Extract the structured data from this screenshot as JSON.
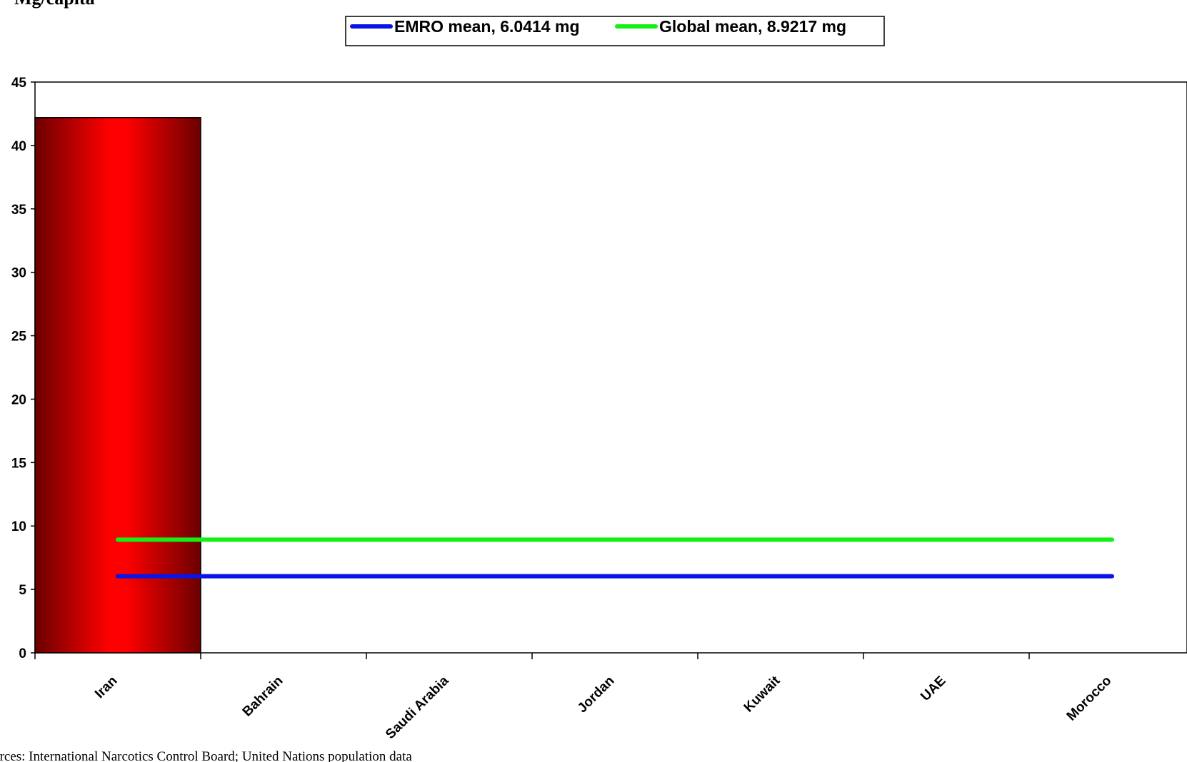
{
  "chart_data": {
    "type": "bar",
    "ylabel": "Mg/capita",
    "categories": [
      "Iran",
      "Bahrain",
      "Saudi Arabia",
      "Jordan",
      "Kuwait",
      "UAE",
      "Morocco"
    ],
    "values": [
      42.2,
      0,
      0,
      0,
      0,
      0,
      0
    ],
    "yticks": [
      "0",
      "5",
      "10",
      "15",
      "20",
      "25",
      "30",
      "35",
      "40",
      "45"
    ],
    "ylim": [
      0,
      45
    ],
    "reference_lines": [
      {
        "name": "EMRO mean, 6.0414 mg",
        "value": 6.0414,
        "color": "#0a14e6"
      },
      {
        "name": "Global mean, 8.9217 mg",
        "value": 8.9217,
        "color": "#14f014"
      }
    ],
    "bar_colors": {
      "edge": "#6b0000",
      "center": "#ff0000"
    },
    "legend_position": "top-center",
    "grid": false,
    "source": "Sources: International Narcotics Control Board; United Nations population data"
  }
}
